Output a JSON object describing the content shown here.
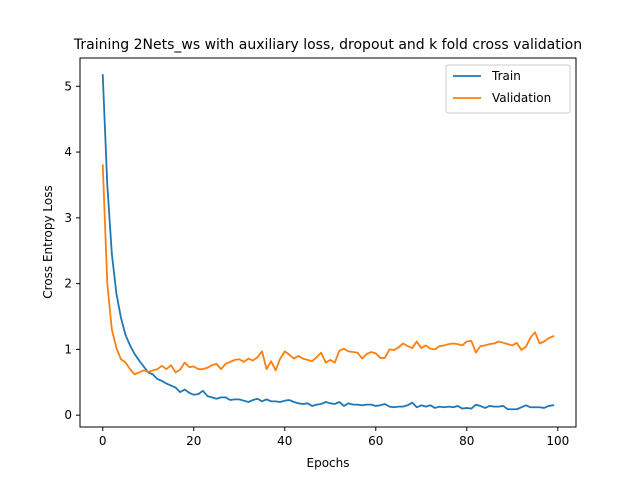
{
  "chart_data": {
    "type": "line",
    "title": "Training 2Nets_ws with auxiliary loss, dropout and k fold cross validation",
    "xlabel": "Epochs",
    "ylabel": "Cross Entropy Loss",
    "xlim": [
      -5,
      104
    ],
    "ylim": [
      -0.18,
      5.43
    ],
    "xticks": [
      0,
      20,
      40,
      60,
      80,
      100
    ],
    "yticks": [
      0,
      1,
      2,
      3,
      4,
      5
    ],
    "grid": false,
    "legend_position": "top-right",
    "series": [
      {
        "name": "Train",
        "color": "#1f77b4",
        "x": [
          0,
          1,
          2,
          3,
          4,
          5,
          6,
          7,
          8,
          9,
          10,
          11,
          12,
          13,
          14,
          15,
          16,
          17,
          18,
          19,
          20,
          21,
          22,
          23,
          24,
          25,
          26,
          27,
          28,
          29,
          30,
          31,
          32,
          33,
          34,
          35,
          36,
          37,
          38,
          39,
          40,
          41,
          42,
          43,
          44,
          45,
          46,
          47,
          48,
          49,
          50,
          51,
          52,
          53,
          54,
          55,
          56,
          57,
          58,
          59,
          60,
          61,
          62,
          63,
          64,
          65,
          66,
          67,
          68,
          69,
          70,
          71,
          72,
          73,
          74,
          75,
          76,
          77,
          78,
          79,
          80,
          81,
          82,
          83,
          84,
          85,
          86,
          87,
          88,
          89,
          90,
          91,
          92,
          93,
          94,
          95,
          96,
          97,
          98,
          99
        ],
        "values": [
          5.17,
          3.5,
          2.45,
          1.85,
          1.48,
          1.22,
          1.06,
          0.93,
          0.83,
          0.74,
          0.65,
          0.62,
          0.55,
          0.52,
          0.48,
          0.45,
          0.42,
          0.35,
          0.39,
          0.34,
          0.31,
          0.32,
          0.37,
          0.29,
          0.27,
          0.25,
          0.27,
          0.27,
          0.23,
          0.24,
          0.24,
          0.22,
          0.2,
          0.23,
          0.25,
          0.21,
          0.24,
          0.21,
          0.21,
          0.2,
          0.22,
          0.23,
          0.2,
          0.18,
          0.17,
          0.18,
          0.14,
          0.16,
          0.17,
          0.2,
          0.18,
          0.17,
          0.2,
          0.14,
          0.18,
          0.16,
          0.16,
          0.15,
          0.16,
          0.16,
          0.14,
          0.15,
          0.17,
          0.13,
          0.12,
          0.13,
          0.13,
          0.15,
          0.19,
          0.12,
          0.15,
          0.13,
          0.15,
          0.11,
          0.13,
          0.12,
          0.13,
          0.12,
          0.14,
          0.1,
          0.11,
          0.1,
          0.16,
          0.14,
          0.11,
          0.14,
          0.13,
          0.13,
          0.14,
          0.09,
          0.09,
          0.09,
          0.12,
          0.15,
          0.12,
          0.12,
          0.12,
          0.11,
          0.14,
          0.15
        ]
      },
      {
        "name": "Validation",
        "color": "#ff7f0e",
        "x": [
          0,
          1,
          2,
          3,
          4,
          5,
          6,
          7,
          8,
          9,
          10,
          11,
          12,
          13,
          14,
          15,
          16,
          17,
          18,
          19,
          20,
          21,
          22,
          23,
          24,
          25,
          26,
          27,
          28,
          29,
          30,
          31,
          32,
          33,
          34,
          35,
          36,
          37,
          38,
          39,
          40,
          41,
          42,
          43,
          44,
          45,
          46,
          47,
          48,
          49,
          50,
          51,
          52,
          53,
          54,
          55,
          56,
          57,
          58,
          59,
          60,
          61,
          62,
          63,
          64,
          65,
          66,
          67,
          68,
          69,
          70,
          71,
          72,
          73,
          74,
          75,
          76,
          77,
          78,
          79,
          80,
          81,
          82,
          83,
          84,
          85,
          86,
          87,
          88,
          89,
          90,
          91,
          92,
          93,
          94,
          95,
          96,
          97,
          98,
          99
        ],
        "values": [
          3.8,
          2.0,
          1.3,
          1.02,
          0.85,
          0.8,
          0.7,
          0.62,
          0.65,
          0.68,
          0.66,
          0.68,
          0.7,
          0.75,
          0.7,
          0.76,
          0.65,
          0.69,
          0.8,
          0.73,
          0.74,
          0.7,
          0.7,
          0.72,
          0.76,
          0.78,
          0.7,
          0.78,
          0.81,
          0.84,
          0.85,
          0.81,
          0.86,
          0.83,
          0.88,
          0.97,
          0.7,
          0.82,
          0.68,
          0.86,
          0.97,
          0.92,
          0.86,
          0.9,
          0.86,
          0.84,
          0.82,
          0.88,
          0.95,
          0.8,
          0.84,
          0.8,
          0.98,
          1.01,
          0.97,
          0.96,
          0.95,
          0.86,
          0.93,
          0.96,
          0.94,
          0.87,
          0.87,
          1.0,
          0.99,
          1.03,
          1.09,
          1.05,
          1.02,
          1.12,
          1.02,
          1.06,
          1.01,
          1.0,
          1.05,
          1.06,
          1.08,
          1.09,
          1.08,
          1.06,
          1.12,
          1.13,
          0.95,
          1.05,
          1.06,
          1.08,
          1.09,
          1.12,
          1.1,
          1.08,
          1.06,
          1.1,
          0.99,
          1.04,
          1.18,
          1.26,
          1.09,
          1.12,
          1.17,
          1.2
        ]
      }
    ]
  }
}
